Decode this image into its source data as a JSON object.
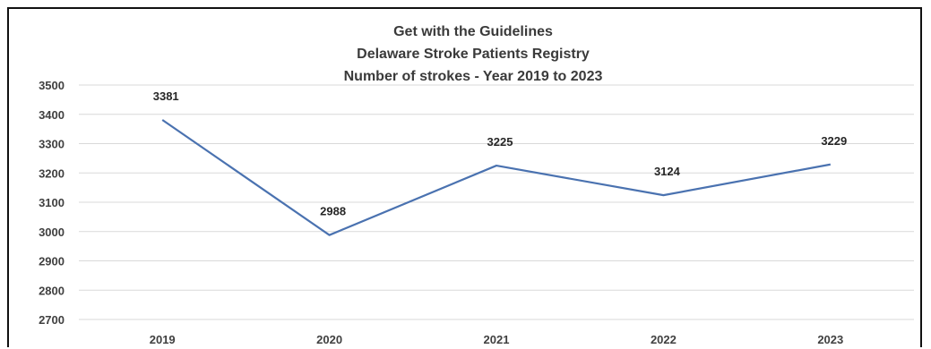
{
  "chart_data": {
    "type": "line",
    "title": [
      "Get with the Guidelines",
      "Delaware Stroke Patients Registry",
      "Number of strokes -  Year 2019 to 2023"
    ],
    "categories": [
      "2019",
      "2020",
      "2021",
      "2022",
      "2023"
    ],
    "series": [
      {
        "values": [
          3381,
          2988,
          3225,
          3124,
          3229
        ]
      }
    ],
    "data_labels": [
      "3381",
      "2988",
      "3225",
      "3124",
      "3229"
    ],
    "ylim": [
      2700,
      3500
    ],
    "yticks": [
      "3500",
      "3400",
      "3300",
      "3200",
      "3100",
      "3000",
      "2900",
      "2800",
      "2700"
    ],
    "grid": true,
    "legend": "none",
    "colors": {
      "line": "#4a72b0",
      "grid": "#d9d9d9",
      "text": "#404040"
    }
  }
}
